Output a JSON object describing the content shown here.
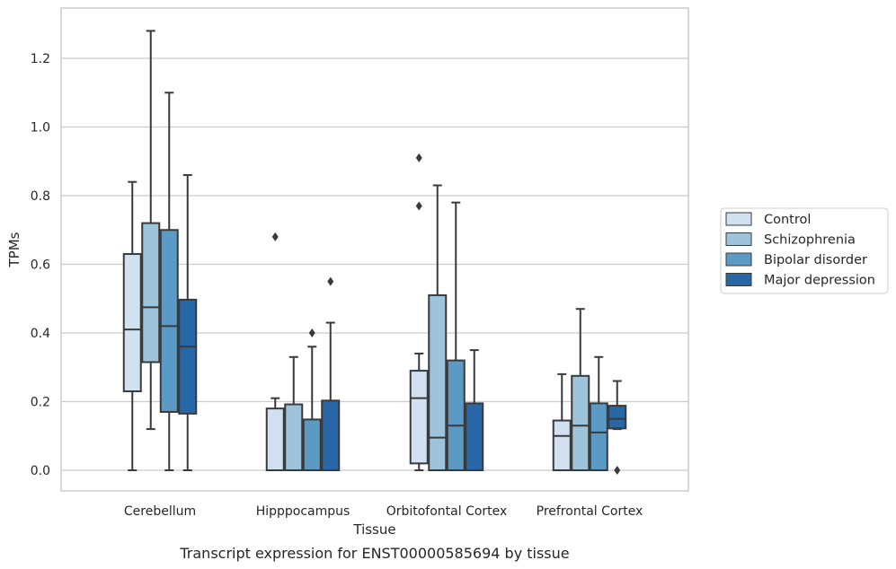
{
  "chart_data": {
    "type": "box",
    "title": "Transcript expression for ENST00000585694 by tissue",
    "xlabel": "Tissue",
    "ylabel": "TPMs",
    "ylim": [
      -0.06,
      1.35
    ],
    "yticks": [
      0.0,
      0.2,
      0.4,
      0.6,
      0.8,
      1.0,
      1.2
    ],
    "ytick_labels": [
      "0.0",
      "0.2",
      "0.4",
      "0.6",
      "0.8",
      "1.0",
      "1.2"
    ],
    "grid": "horizontal",
    "legend_position": "right",
    "categories": [
      "Cerebellum",
      "Hipppocampus",
      "Orbitofontal Cortex",
      "Prefrontal Cortex"
    ],
    "series": [
      {
        "name": "Control",
        "color": "#d1e1f0",
        "boxes": [
          {
            "whislo": 0.0,
            "q1": 0.23,
            "med": 0.41,
            "q3": 0.63,
            "whishi": 0.84,
            "fliers": []
          },
          {
            "whislo": 0.0,
            "q1": 0.0,
            "med": 0.0,
            "q3": 0.18,
            "whishi": 0.21,
            "fliers": [
              0.68
            ]
          },
          {
            "whislo": 0.0,
            "q1": 0.02,
            "med": 0.21,
            "q3": 0.29,
            "whishi": 0.34,
            "fliers": [
              0.77,
              0.91
            ]
          },
          {
            "whislo": 0.0,
            "q1": 0.0,
            "med": 0.1,
            "q3": 0.145,
            "whishi": 0.28,
            "fliers": []
          }
        ]
      },
      {
        "name": "Schizophrenia",
        "color": "#9dc4db",
        "boxes": [
          {
            "whislo": 0.12,
            "q1": 0.315,
            "med": 0.475,
            "q3": 0.72,
            "whishi": 1.28,
            "fliers": []
          },
          {
            "whislo": 0.0,
            "q1": 0.0,
            "med": 0.0,
            "q3": 0.192,
            "whishi": 0.33,
            "fliers": []
          },
          {
            "whislo": 0.0,
            "q1": 0.0,
            "med": 0.095,
            "q3": 0.51,
            "whishi": 0.83,
            "fliers": []
          },
          {
            "whislo": 0.0,
            "q1": 0.0,
            "med": 0.13,
            "q3": 0.275,
            "whishi": 0.47,
            "fliers": []
          }
        ]
      },
      {
        "name": "Bipolar disorder",
        "color": "#5a9ac5",
        "boxes": [
          {
            "whislo": 0.0,
            "q1": 0.17,
            "med": 0.42,
            "q3": 0.7,
            "whishi": 1.1,
            "fliers": []
          },
          {
            "whislo": 0.0,
            "q1": 0.0,
            "med": 0.0,
            "q3": 0.148,
            "whishi": 0.36,
            "fliers": [
              0.4
            ]
          },
          {
            "whislo": 0.0,
            "q1": 0.0,
            "med": 0.13,
            "q3": 0.32,
            "whishi": 0.78,
            "fliers": []
          },
          {
            "whislo": 0.0,
            "q1": 0.0,
            "med": 0.11,
            "q3": 0.195,
            "whishi": 0.33,
            "fliers": []
          }
        ]
      },
      {
        "name": "Major depression",
        "color": "#2867a5",
        "boxes": [
          {
            "whislo": 0.0,
            "q1": 0.165,
            "med": 0.36,
            "q3": 0.497,
            "whishi": 0.86,
            "fliers": []
          },
          {
            "whislo": 0.0,
            "q1": 0.0,
            "med": 0.0,
            "q3": 0.203,
            "whishi": 0.43,
            "fliers": [
              0.55
            ]
          },
          {
            "whislo": 0.0,
            "q1": 0.0,
            "med": 0.0,
            "q3": 0.195,
            "whishi": 0.35,
            "fliers": []
          },
          {
            "whislo": 0.12,
            "q1": 0.122,
            "med": 0.15,
            "q3": 0.188,
            "whishi": 0.26,
            "fliers": [
              0.0
            ]
          }
        ]
      }
    ]
  }
}
